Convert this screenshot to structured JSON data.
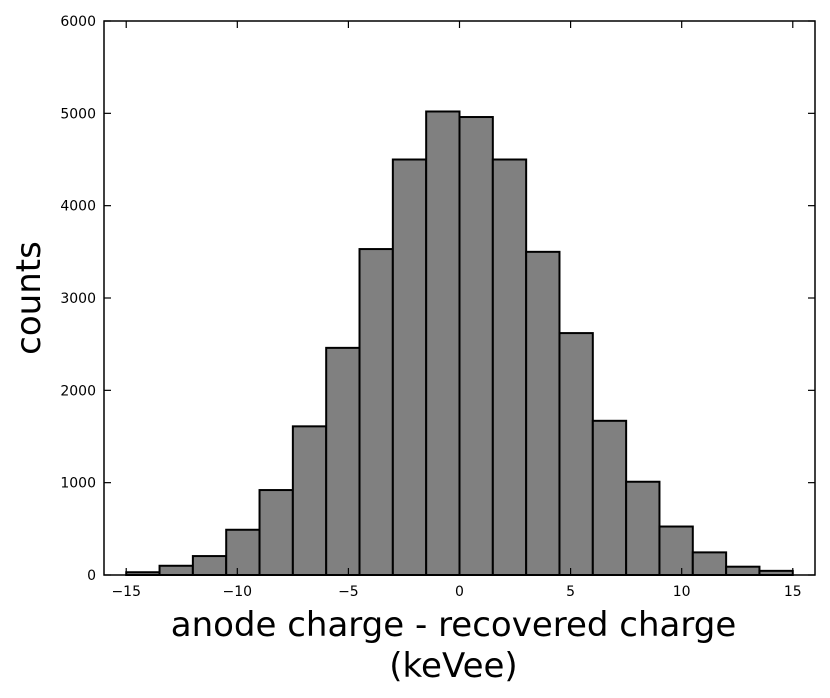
{
  "chart_data": {
    "type": "bar",
    "histogram": true,
    "bin_width": 1.5,
    "bin_edges": [
      -15,
      -13.5,
      -12,
      -10.5,
      -9,
      -7.5,
      -6,
      -4.5,
      -3,
      -1.5,
      0,
      1.5,
      3,
      4.5,
      6,
      7.5,
      9,
      10.5,
      12,
      13.5,
      15
    ],
    "values": [
      30,
      100,
      205,
      490,
      920,
      1610,
      2460,
      3530,
      4500,
      5020,
      4960,
      4500,
      3500,
      2620,
      1670,
      1010,
      525,
      245,
      90,
      45
    ],
    "xlim": [
      -16,
      16
    ],
    "ylim": [
      0,
      6000
    ],
    "xticks": [
      -15,
      -10,
      -5,
      0,
      5,
      10,
      15
    ],
    "xtick_labels": [
      "−15",
      "−10",
      "−5",
      "0",
      "5",
      "10",
      "15"
    ],
    "yticks": [
      0,
      1000,
      2000,
      3000,
      4000,
      5000,
      6000
    ],
    "ytick_labels": [
      "0",
      "1000",
      "2000",
      "3000",
      "4000",
      "5000",
      "6000"
    ],
    "xlabel_line1": "anode charge - recovered charge",
    "xlabel_line2": "(keVee)",
    "ylabel": "counts",
    "title": "",
    "grid": false,
    "bar_color": "#808080",
    "edge_color": "#000000"
  }
}
